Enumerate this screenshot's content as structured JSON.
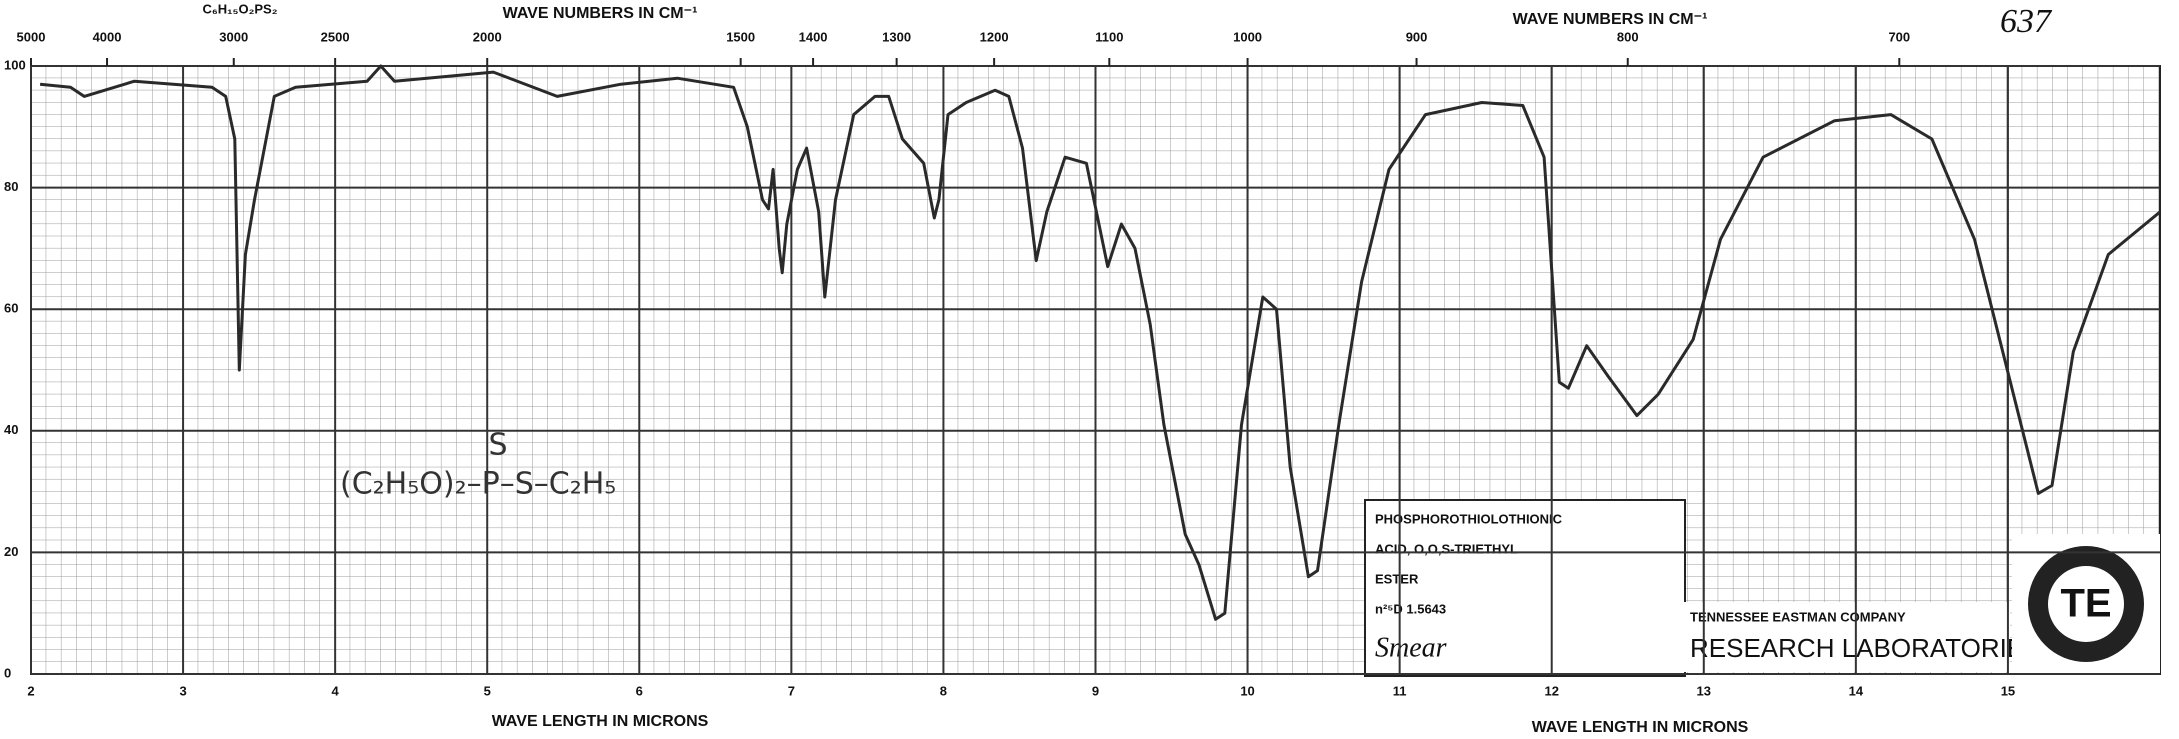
{
  "chart_data": {
    "type": "line",
    "note_number": "637",
    "formula": "C₆H₁₅O₂PS₂",
    "structure": "(C₂H₅O)₂–P–S–C₂H₅",
    "structure_top": "S",
    "x2label": "WAVE NUMBERS IN CM⁻¹",
    "xlabel": "WAVE LENGTH IN MICRONS",
    "info_lines": [
      "PHOSPHOROTHIOLOTHIONIC",
      "ACID, O,O,S-TRIETHYL",
      "ESTER",
      "n²⁵D 1.5643",
      "Smear"
    ],
    "company": "TENNESSEE EASTMAN COMPANY",
    "lab": "RESEARCH LABORATORIES",
    "color": "#2a2a2a",
    "xlim": [
      2,
      16
    ],
    "ylim": [
      0,
      100
    ],
    "xticks": [
      2,
      3,
      4,
      5,
      6,
      7,
      8,
      9,
      10,
      11,
      12,
      13,
      14,
      15
    ],
    "yticks": [
      0,
      20,
      40,
      60,
      80,
      100
    ],
    "x2ticks": [
      5000,
      4000,
      3000,
      2500,
      2000,
      1500,
      1400,
      1300,
      1200,
      1100,
      1000,
      900,
      800,
      700
    ],
    "grid": true,
    "x": [
      2.06,
      2.26,
      2.35,
      2.68,
      3.19,
      3.28,
      3.34,
      3.37,
      3.41,
      3.47,
      3.6,
      3.74,
      4.21,
      4.3,
      4.39,
      5.04,
      5.46,
      5.88,
      6.25,
      6.62,
      6.71,
      6.81,
      6.85,
      6.88,
      6.92,
      6.94,
      6.97,
      7.04,
      7.1,
      7.18,
      7.22,
      7.29,
      7.41,
      7.55,
      7.64,
      7.73,
      7.87,
      7.94,
      7.97,
      8.03,
      8.15,
      8.34,
      8.43,
      8.52,
      8.61,
      8.68,
      8.8,
      8.94,
      9.08,
      9.17,
      9.26,
      9.36,
      9.45,
      9.59,
      9.68,
      9.79,
      9.85,
      9.96,
      10.1,
      10.19,
      10.28,
      10.4,
      10.46,
      10.6,
      10.75,
      10.93,
      11.17,
      11.54,
      11.81,
      11.95,
      12.05,
      12.11,
      12.23,
      12.37,
      12.56,
      12.7,
      12.93,
      13.11,
      13.39,
      13.86,
      14.23,
      14.5,
      14.78,
      15.06,
      15.2,
      15.29,
      15.43,
      15.66,
      16
    ],
    "values": [
      97,
      96.5,
      95,
      97.5,
      96.5,
      95,
      88,
      50,
      69,
      78,
      95,
      96.5,
      97.5,
      100,
      97.5,
      99,
      95,
      97,
      98,
      96.5,
      90,
      78,
      76.5,
      83,
      70,
      66,
      74,
      83,
      86.5,
      76,
      62,
      78,
      92,
      95,
      95,
      88,
      84,
      75,
      78,
      92,
      94,
      96,
      95,
      86.5,
      68,
      76,
      85,
      84,
      67,
      74,
      70,
      57.5,
      41,
      23,
      18,
      9,
      10,
      41,
      62,
      60,
      34,
      16,
      17,
      41,
      64.5,
      83,
      92,
      94,
      93.5,
      85,
      48,
      47,
      54,
      49,
      42.5,
      46,
      55,
      71.5,
      85,
      91,
      92,
      88,
      71.5,
      43.6,
      29.7,
      31,
      53,
      69,
      76
    ]
  }
}
